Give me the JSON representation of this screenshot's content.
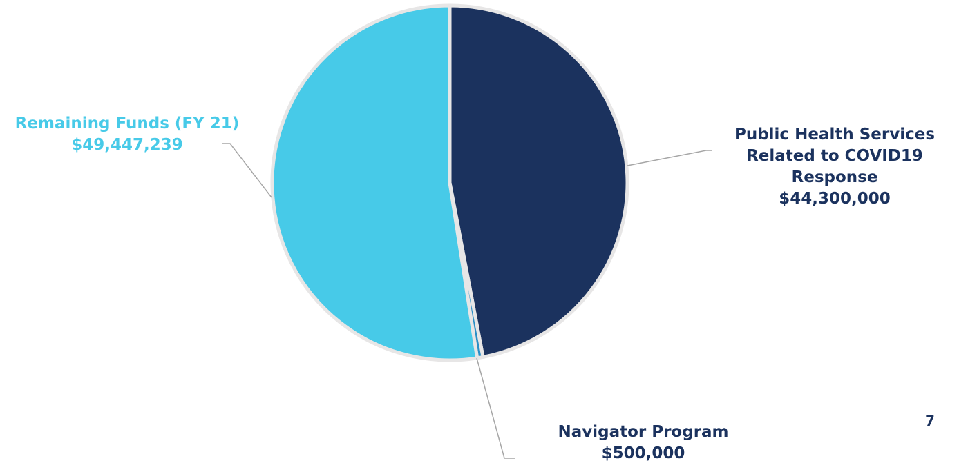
{
  "chart_data": {
    "type": "pie",
    "start_angle_deg": 0,
    "direction": "clockwise",
    "slices": [
      {
        "name_lines": [
          "Public Health Services",
          "Related to COVID19",
          "Response"
        ],
        "value_label": "$44,300,000",
        "value": 44300000,
        "color": "#1b325e",
        "label_color": "#1b325e"
      },
      {
        "name_lines": [
          "Navigator Program"
        ],
        "value_label": "$500,000",
        "value": 500000,
        "color": "#2a8fc6",
        "label_color": "#1b325e"
      },
      {
        "name_lines": [
          "Remaining Funds (FY 21)"
        ],
        "value_label": "$49,447,239",
        "value": 49447239,
        "color": "#47cae8",
        "label_color": "#47cae8"
      }
    ],
    "slice_border_color": "#e7e6e6",
    "leader_line_color": "#a6a6a6"
  },
  "page_number": "7",
  "page_number_color": "#1b325e"
}
